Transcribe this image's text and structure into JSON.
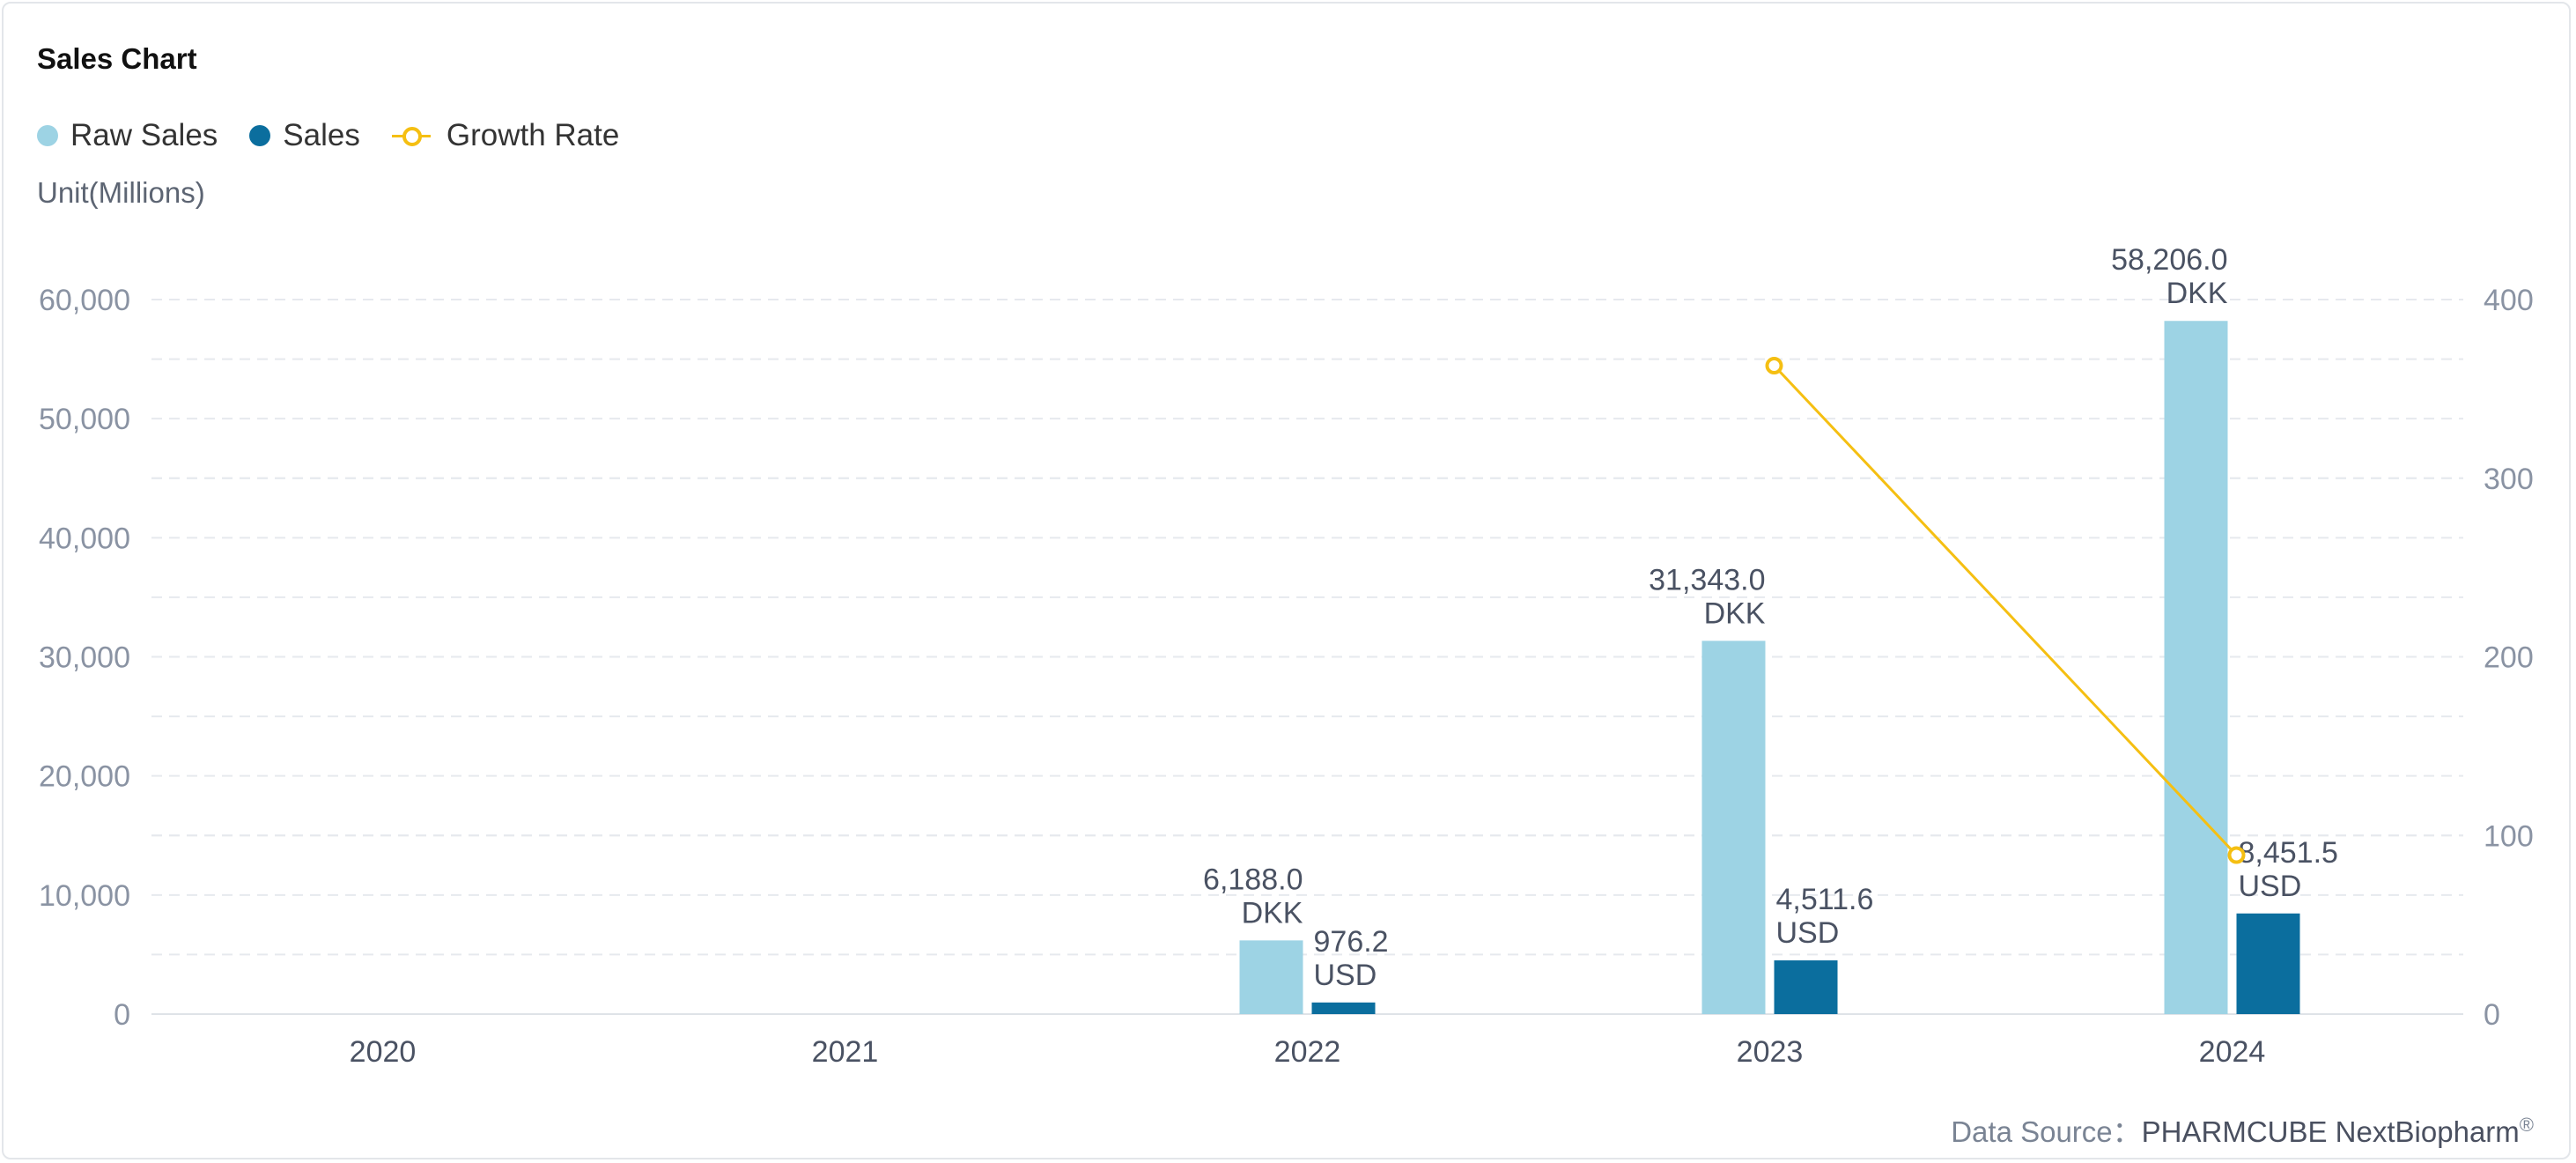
{
  "title": "Sales Chart",
  "unit_label": "Unit(Millions)",
  "data_source": {
    "prefix": "Data Source：",
    "brand": "PHARMCUBE NextBiopharm",
    "mark": "®"
  },
  "colors": {
    "raw_sales": "#9dd3e4",
    "sales": "#0b6e9e",
    "growth_rate": "#f5bf12",
    "grid": "#e6e9ee",
    "axis_text": "#8a93a3",
    "label_text": "#4a5263"
  },
  "chart_data": {
    "type": "bar",
    "categories": [
      "2020",
      "2021",
      "2022",
      "2023",
      "2024"
    ],
    "series": [
      {
        "name": "Raw Sales",
        "kind": "bar",
        "axis": "left",
        "values": [
          null,
          null,
          6188.0,
          31343.0,
          58206.0
        ],
        "labels": [
          null,
          null,
          [
            "6,188.0",
            "DKK"
          ],
          [
            "31,343.0",
            "DKK"
          ],
          [
            "58,206.0",
            "DKK"
          ]
        ]
      },
      {
        "name": "Sales",
        "kind": "bar",
        "axis": "left",
        "values": [
          null,
          null,
          976.2,
          4511.6,
          8451.5
        ],
        "labels": [
          null,
          null,
          [
            "976.2",
            "USD"
          ],
          [
            "4,511.6",
            "USD"
          ],
          [
            "8,451.5",
            "USD"
          ]
        ]
      },
      {
        "name": "Growth Rate",
        "kind": "line",
        "axis": "right",
        "values": [
          null,
          null,
          null,
          363,
          89
        ]
      }
    ],
    "ylim": [
      0,
      60000
    ],
    "yticks": [
      0,
      10000,
      20000,
      30000,
      40000,
      50000,
      60000
    ],
    "ytick_labels": [
      "0",
      "10,000",
      "20,000",
      "30,000",
      "40,000",
      "50,000",
      "60,000"
    ],
    "y2lim": [
      0,
      400
    ],
    "y2ticks": [
      0,
      100,
      200,
      300,
      400
    ],
    "y2tick_labels": [
      "0",
      "100",
      "200",
      "300",
      "400"
    ],
    "grid": true,
    "legend_position": "top-left"
  }
}
